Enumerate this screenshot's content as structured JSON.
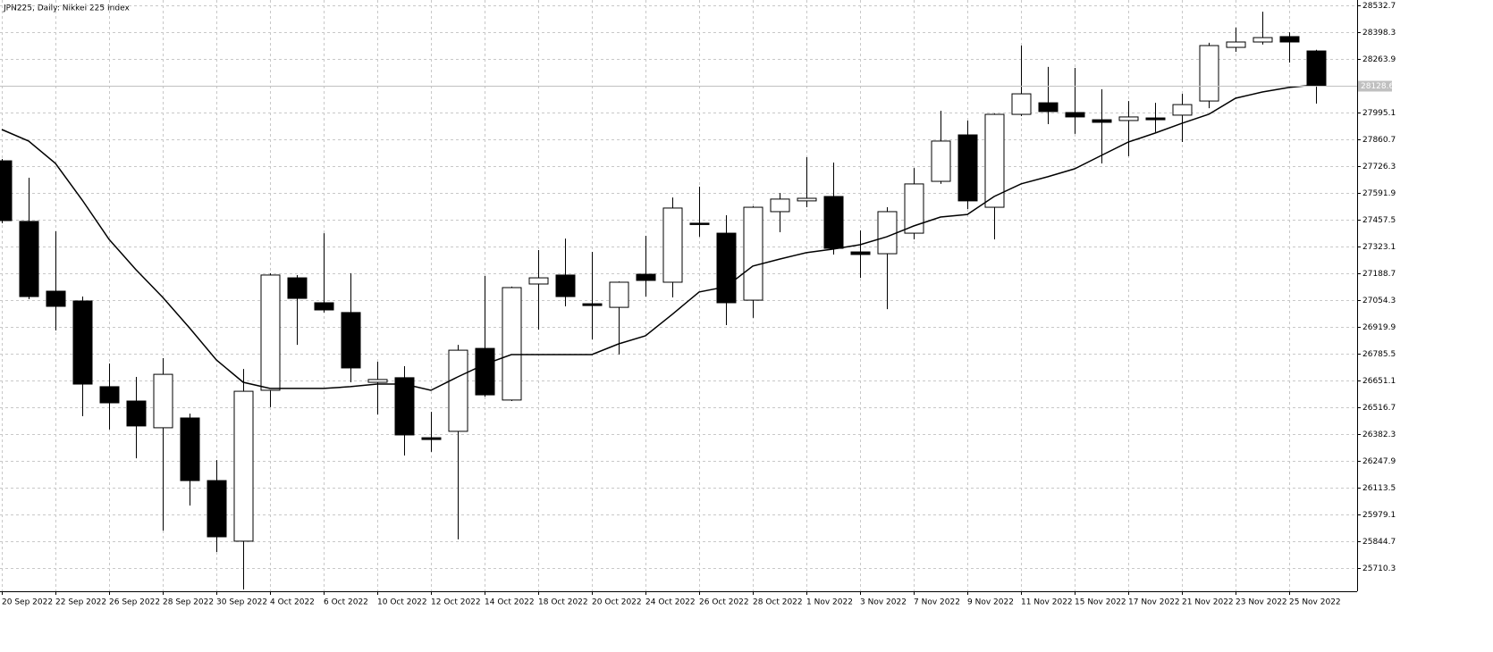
{
  "chart_data": {
    "type": "candlestick",
    "title": "JPN225, Daily:  Nikkei 225 Index",
    "categories": [
      "20 Sep 2022",
      null,
      "22 Sep 2022",
      null,
      "26 Sep 2022",
      null,
      "28 Sep 2022",
      null,
      "30 Sep 2022",
      null,
      "4 Oct 2022",
      null,
      "6 Oct 2022",
      null,
      "10 Oct 2022",
      null,
      "12 Oct 2022",
      null,
      "14 Oct 2022",
      null,
      "18 Oct 2022",
      null,
      "20 Oct 2022",
      null,
      "24 Oct 2022",
      null,
      "26 Oct 2022",
      null,
      "28 Oct 2022",
      null,
      "1 Nov 2022",
      null,
      "3 Nov 2022",
      null,
      "7 Nov 2022",
      null,
      "9 Nov 2022",
      null,
      "11 Nov 2022",
      null,
      "15 Nov 2022",
      null,
      "17 Nov 2022",
      null,
      "21 Nov 2022",
      null,
      "23 Nov 2022",
      null,
      "25 Nov 2022",
      null
    ],
    "open": [
      27753,
      27449,
      27099,
      27050,
      26620,
      26548,
      26414,
      26463,
      26149,
      25845,
      26602,
      27166,
      27041,
      26992,
      26642,
      26665,
      26364,
      26396,
      26812,
      26553,
      27135,
      27180,
      27036,
      27018,
      27184,
      27144,
      27440,
      27390,
      27054,
      27498,
      27552,
      27574,
      27296,
      27287,
      27390,
      27650,
      27883,
      27520,
      27986,
      28044,
      27995,
      27959,
      27955,
      27968,
      27982,
      28053,
      28322,
      28349,
      28376,
      28304
    ],
    "high": [
      27762,
      27668,
      27399,
      27072,
      26736,
      26669,
      26763,
      26485,
      26252,
      26709,
      27189,
      27180,
      27390,
      27189,
      26745,
      26723,
      26494,
      26830,
      27175,
      27122,
      27305,
      27363,
      27296,
      27148,
      27377,
      27569,
      27623,
      27480,
      27525,
      27592,
      27771,
      27744,
      27404,
      27520,
      27717,
      28004,
      27955,
      27990,
      28331,
      28224,
      28219,
      28112,
      28053,
      28044,
      28089,
      28345,
      28421,
      28501,
      28398,
      28310
    ],
    "low": [
      27440,
      27059,
      26902,
      26472,
      26405,
      26261,
      25898,
      26024,
      25791,
      25603,
      26517,
      26830,
      26992,
      26642,
      26481,
      26275,
      26293,
      25854,
      26570,
      26548,
      26906,
      27023,
      26857,
      26781,
      27072,
      27068,
      27372,
      26929,
      26965,
      27395,
      27520,
      27283,
      27166,
      27009,
      27359,
      27637,
      27511,
      27359,
      27977,
      27937,
      27888,
      27740,
      27776,
      27897,
      27847,
      28017,
      28300,
      28336,
      28246,
      28040
    ],
    "close": [
      27453,
      27072,
      27023,
      26633,
      26539,
      26423,
      26682,
      26149,
      25867,
      26597,
      27180,
      27063,
      27005,
      26714,
      26656,
      26378,
      26355,
      26803,
      26579,
      27117,
      27166,
      27072,
      27027,
      27144,
      27153,
      27516,
      27435,
      27041,
      27520,
      27561,
      27565,
      27314,
      27283,
      27498,
      27637,
      27852,
      27552,
      27986,
      28089,
      28000,
      27973,
      27946,
      27973,
      27959,
      28035,
      28331,
      28349,
      28371,
      28349,
      28128.6
    ],
    "ma": [
      27910,
      27852,
      27740,
      27556,
      27359,
      27207,
      27068,
      26915,
      26754,
      26642,
      26611,
      26611,
      26611,
      26620,
      26633,
      26633,
      26602,
      26669,
      26732,
      26781,
      26781,
      26781,
      26781,
      26835,
      26875,
      26983,
      27095,
      27121,
      27225,
      27260,
      27292,
      27310,
      27332,
      27372,
      27426,
      27471,
      27484,
      27574,
      27637,
      27673,
      27713,
      27780,
      27847,
      27892,
      27941,
      27986,
      28067,
      28098,
      28121,
      28134
    ],
    "last_price": 28128.6,
    "bull_color": "#ffffff",
    "bear_color": "#000000",
    "line_color": "#000000",
    "grid": true,
    "ylim": [
      25593.8,
      28559.6
    ],
    "yticks": [
      28532.7,
      28398.3,
      28263.9,
      27995.1,
      27860.7,
      27726.3,
      27591.9,
      27457.5,
      27323.1,
      27188.7,
      27054.3,
      26919.9,
      26785.5,
      26651.1,
      26516.7,
      26382.3,
      26247.9,
      26113.5,
      25979.1,
      25844.7,
      25710.3
    ]
  }
}
